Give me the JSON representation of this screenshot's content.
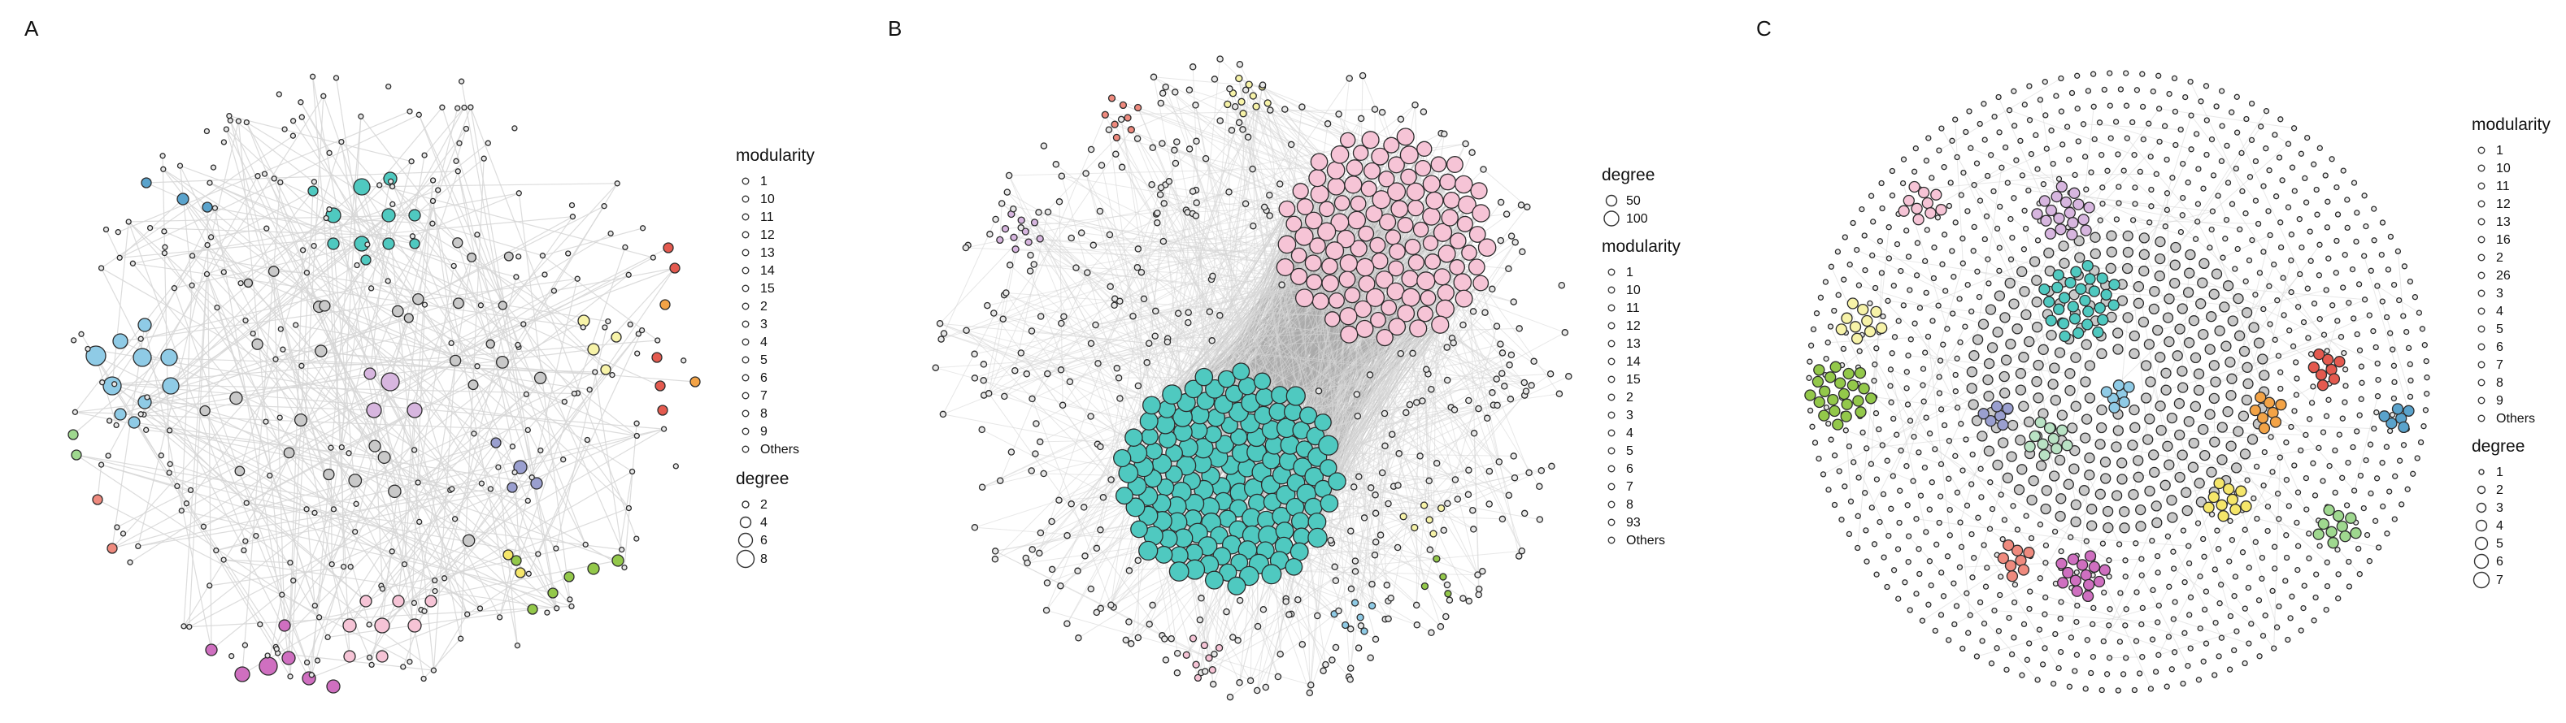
{
  "figure": {
    "panels": [
      {
        "id": "A",
        "label": "A",
        "legend": {
          "modularity_title": "modularity",
          "modularity_items": [
            "1",
            "10",
            "11",
            "12",
            "13",
            "14",
            "15",
            "2",
            "3",
            "4",
            "5",
            "6",
            "7",
            "8",
            "9",
            "Others"
          ],
          "degree_title": "degree",
          "degree_items": [
            "2",
            "4",
            "6",
            "8"
          ]
        }
      },
      {
        "id": "B",
        "label": "B",
        "legend": {
          "degree_title": "degree",
          "degree_items": [
            "50",
            "100"
          ],
          "modularity_title": "modularity",
          "modularity_items": [
            "1",
            "10",
            "11",
            "12",
            "13",
            "14",
            "15",
            "2",
            "3",
            "4",
            "5",
            "6",
            "7",
            "8",
            "93",
            "Others"
          ]
        }
      },
      {
        "id": "C",
        "label": "C",
        "legend": {
          "modularity_title": "modularity",
          "modularity_items": [
            "1",
            "10",
            "11",
            "12",
            "13",
            "16",
            "2",
            "26",
            "3",
            "4",
            "5",
            "6",
            "7",
            "8",
            "9",
            "Others"
          ],
          "degree_title": "degree",
          "degree_items": [
            "1",
            "2",
            "3",
            "4",
            "5",
            "6",
            "7"
          ]
        }
      }
    ]
  },
  "colors": {
    "teal": "#4fc9c0",
    "pink": "#f6c4d6",
    "magenta": "#cf6fc0",
    "skyblue": "#8fcbe6",
    "lavender": "#d7b6df",
    "yellowgreen": "#93c84a",
    "lightgreen": "#9fd88f",
    "yellow": "#f5e66a",
    "paleyellow": "#f7f3a8",
    "salmon": "#ef8a7e",
    "red": "#e45a4f",
    "orange": "#f3a346",
    "steelblue": "#5aa3cc",
    "slate": "#9a9fcf",
    "mint": "#b9e2c4",
    "grey": "#c9c9c9",
    "others": "#e8e8e8",
    "edge": "#d6d6d6",
    "edgeDense": "#a8a8a8"
  }
}
